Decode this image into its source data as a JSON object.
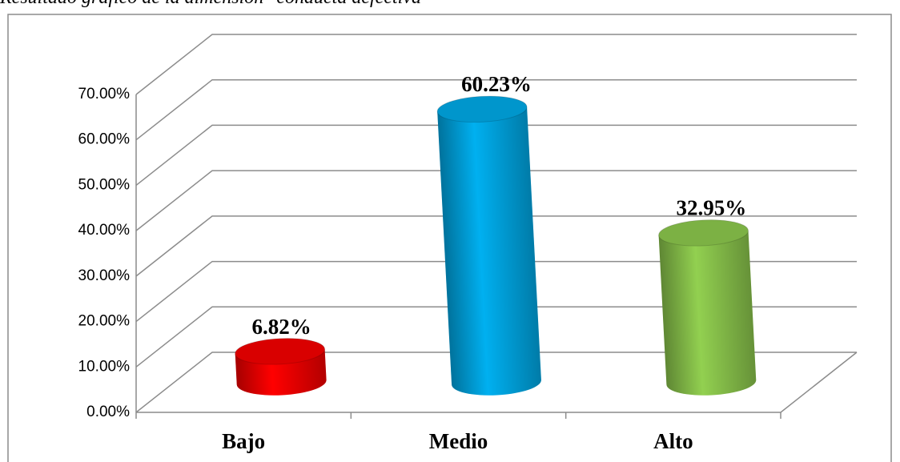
{
  "chart_data": {
    "type": "bar3d",
    "title": "Resultado gráfico de la dimensión \"conducta defectiva\"",
    "categories": [
      "Bajo",
      "Medio",
      "Alto"
    ],
    "values": [
      6.82,
      60.23,
      32.95
    ],
    "value_labels": [
      "6.82%",
      "60.23%",
      "32.95%"
    ],
    "colors": [
      "#ff0000",
      "#00b0f0",
      "#92d050"
    ],
    "ylim": [
      0,
      70
    ],
    "yticks": [
      {
        "value": 0,
        "label": "0.00%"
      },
      {
        "value": 10,
        "label": "10.00%"
      },
      {
        "value": 20,
        "label": "20.00%"
      },
      {
        "value": 30,
        "label": "30.00%"
      },
      {
        "value": 40,
        "label": "40.00%"
      },
      {
        "value": 50,
        "label": "50.00%"
      },
      {
        "value": 60,
        "label": "60.00%"
      },
      {
        "value": 70,
        "label": "70.00%"
      }
    ],
    "grid": true
  }
}
